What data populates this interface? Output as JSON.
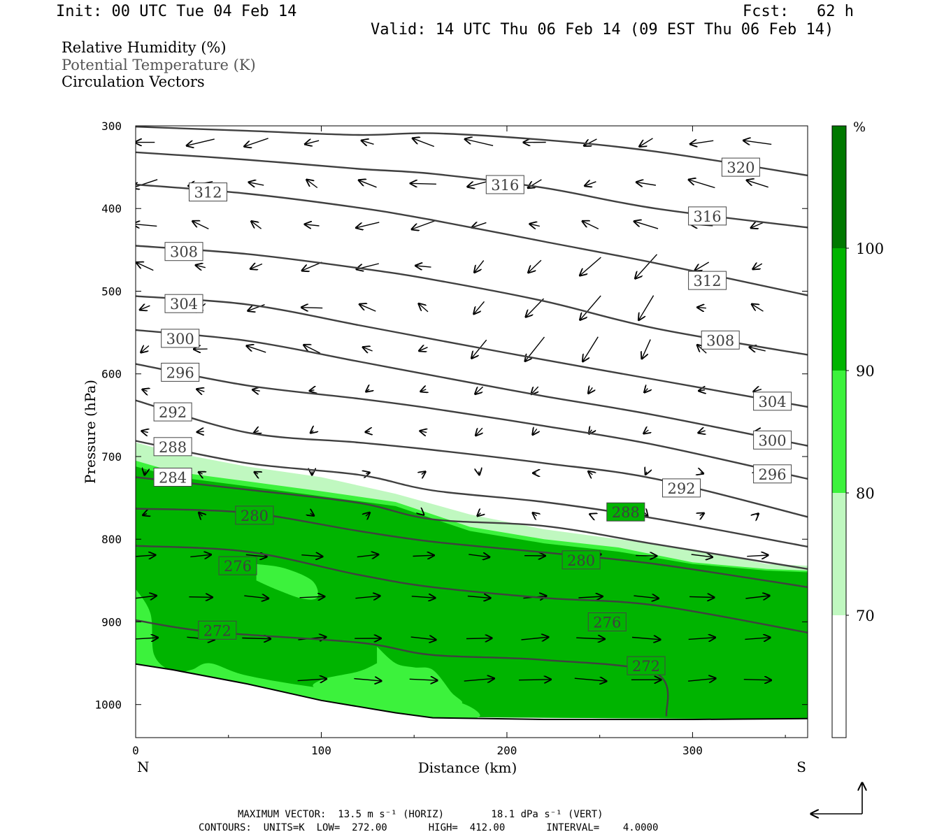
{
  "header": {
    "init": "Init: 00 UTC Tue 04 Feb 14",
    "fcst": "Fcst:   62 h",
    "valid": "Valid: 14 UTC Thu 06 Feb 14 (09 EST Thu 06 Feb 14)"
  },
  "fields": [
    "Relative Humidity (%)",
    "Potential Temperature (K)",
    "Circulation Vectors"
  ],
  "footer": {
    "line1": "MAXIMUM VECTOR:  13.5 m s⁻¹ (HORIZ)        18.1 dPa s⁻¹ (VERT)",
    "line2": "CONTOURS:  UNITS=K  LOW=  272.00       HIGH=  412.00       INTERVAL=    4.0000"
  },
  "chart_data": {
    "type": "cross-section",
    "xlabel": "Distance (km)",
    "ylabel": "Pressure (hPa)",
    "xlim": [
      0,
      362
    ],
    "ylim": [
      300,
      1040
    ],
    "x_ticks": [
      "0",
      "100",
      "200",
      "300"
    ],
    "y_ticks": [
      "300",
      "400",
      "500",
      "600",
      "700",
      "800",
      "900",
      "1000"
    ],
    "x_end_labels": {
      "left": "N",
      "right": "S"
    },
    "colorbar": {
      "unit": "%",
      "levels": [
        "70",
        "80",
        "90",
        "100"
      ],
      "colors": [
        "#ffffff",
        "#c0f8c0",
        "#3cf23c",
        "#00b400",
        "#007800"
      ]
    },
    "colors": {
      "theta": "#404040",
      "rh70": "#c0f8c0",
      "rh80": "#3cf23c",
      "rh90": "#00b400"
    },
    "theta_contours": [
      {
        "value": "320",
        "x": [
          0,
          60,
          120,
          160,
          220,
          280,
          362
        ],
        "p": [
          301,
          306,
          311,
          309,
          317,
          331,
          360
        ],
        "labels": [
          [
            326,
            350
          ]
        ]
      },
      {
        "value": "316",
        "x": [
          0,
          60,
          120,
          160,
          220,
          280,
          362
        ],
        "p": [
          332,
          341,
          352,
          358,
          375,
          400,
          423
        ],
        "labels": [
          [
            199,
            371
          ],
          [
            308,
            409
          ]
        ]
      },
      {
        "value": "312",
        "x": [
          0,
          60,
          120,
          160,
          220,
          280,
          362
        ],
        "p": [
          371,
          382,
          399,
          414,
          440,
          466,
          505
        ],
        "labels": [
          [
            39,
            380
          ],
          [
            308,
            487
          ]
        ]
      },
      {
        "value": "308",
        "x": [
          0,
          60,
          120,
          160,
          220,
          280,
          362
        ],
        "p": [
          445,
          455,
          472,
          486,
          512,
          545,
          577
        ],
        "labels": [
          [
            26,
            452
          ],
          [
            315,
            559
          ]
        ]
      },
      {
        "value": "304",
        "x": [
          0,
          60,
          120,
          160,
          220,
          280,
          362
        ],
        "p": [
          506,
          516,
          541,
          558,
          583,
          607,
          640
        ],
        "labels": [
          [
            26,
            515
          ],
          [
            343,
            633
          ]
        ]
      },
      {
        "value": "300",
        "x": [
          0,
          60,
          120,
          160,
          220,
          280,
          362
        ],
        "p": [
          547,
          560,
          585,
          602,
          627,
          650,
          687
        ],
        "labels": [
          [
            24,
            557
          ],
          [
            343,
            680
          ]
        ]
      },
      {
        "value": "296",
        "x": [
          0,
          60,
          120,
          160,
          220,
          280,
          362
        ],
        "p": [
          588,
          614,
          630,
          642,
          663,
          686,
          727
        ],
        "labels": [
          [
            24,
            598
          ],
          [
            343,
            721
          ]
        ]
      },
      {
        "value": "292",
        "x": [
          0,
          60,
          120,
          160,
          220,
          280,
          362
        ],
        "p": [
          632,
          671,
          683,
          692,
          708,
          727,
          773
        ],
        "labels": [
          [
            20,
            646
          ],
          [
            294,
            738
          ]
        ]
      },
      {
        "value": "288",
        "x": [
          0,
          60,
          120,
          160,
          220,
          280,
          362
        ],
        "p": [
          681,
          708,
          722,
          741,
          755,
          775,
          809
        ],
        "labels": [
          [
            20,
            688
          ],
          [
            264,
            767
          ]
        ]
      },
      {
        "value": "284",
        "x": [
          0,
          60,
          120,
          160,
          220,
          280,
          362
        ],
        "p": [
          725,
          740,
          756,
          776,
          784,
          806,
          836
        ],
        "labels": [
          [
            20,
            725
          ]
        ]
      },
      {
        "value": "280",
        "x": [
          0,
          60,
          120,
          160,
          220,
          280,
          362
        ],
        "p": [
          763,
          768,
          790,
          803,
          816,
          830,
          858
        ],
        "labels": [
          [
            64,
            771
          ],
          [
            240,
            825
          ]
        ]
      },
      {
        "value": "276",
        "x": [
          0,
          60,
          120,
          160,
          220,
          280,
          362
        ],
        "p": [
          808,
          815,
          843,
          858,
          871,
          880,
          913
        ],
        "labels": [
          [
            55,
            832
          ],
          [
            254,
            900
          ]
        ]
      },
      {
        "value": "272",
        "x": [
          0,
          40,
          120,
          160,
          220,
          280,
          286
        ],
        "p": [
          898,
          912,
          925,
          940,
          946,
          962,
          1014
        ],
        "labels": [
          [
            44,
            910
          ],
          [
            275,
            953
          ]
        ]
      }
    ],
    "vector_field": "circulation vectors, max 13.5 m s-1 (horiz), 18.1 dPa s-1 (vert)"
  }
}
